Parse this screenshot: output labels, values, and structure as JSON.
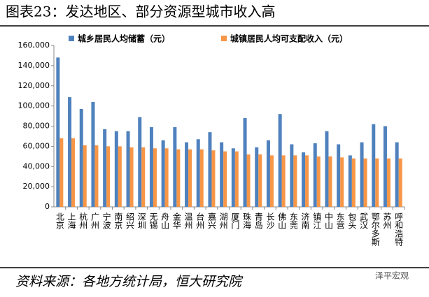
{
  "chart_data": {
    "type": "bar",
    "title": "图表23：发达地区、部分资源型城市收入高",
    "categories": [
      "北京",
      "上海",
      "杭州",
      "广州",
      "宁波",
      "南京",
      "绍兴",
      "深圳",
      "无锡",
      "舟山",
      "金华",
      "温州",
      "台州",
      "嘉兴",
      "湖州",
      "厦门",
      "珠海",
      "青岛",
      "长沙",
      "佛山",
      "东莞",
      "济南",
      "镇江",
      "中山",
      "东营",
      "包头",
      "武汉",
      "鄂尔多斯",
      "苏州",
      "呼和浩特"
    ],
    "series": [
      {
        "name": "城乡居民人均储蓄（元）",
        "color": "#4f81bd",
        "values": [
          148000,
          108700,
          97000,
          104000,
          77000,
          75000,
          75000,
          89000,
          79000,
          66000,
          79000,
          64000,
          67000,
          74000,
          64000,
          58000,
          88000,
          59000,
          66000,
          92000,
          62000,
          54000,
          63000,
          75000,
          62000,
          51000,
          64000,
          82000,
          80000,
          64000
        ]
      },
      {
        "name": "城镇居民人均可支配收入（元）",
        "color": "#f79646",
        "values": [
          68000,
          68000,
          61000,
          61000,
          60000,
          60000,
          59000,
          59000,
          58000,
          58000,
          57000,
          57000,
          57000,
          56000,
          55000,
          55000,
          52000,
          52000,
          51000,
          51000,
          51000,
          51000,
          50000,
          50000,
          49000,
          48000,
          48000,
          48000,
          48000,
          48000
        ]
      }
    ],
    "ylim": [
      0,
      160000
    ],
    "yticks": [
      0,
      {
        "value": 20000,
        "label": "20,000"
      },
      {
        "value": 40000,
        "label": "40,000"
      },
      {
        "value": 60000,
        "label": "60,000"
      },
      {
        "value": 80000,
        "label": "80,000"
      },
      {
        "value": 100000,
        "label": "100,000"
      },
      {
        "value": 120000,
        "label": "120,000"
      },
      {
        "value": 140000,
        "label": "140,000"
      },
      {
        "value": 160000,
        "label": "160,000"
      }
    ],
    "source": "资料来源：各地方统计局，恒大研究院",
    "watermark": "泽平宏观"
  }
}
